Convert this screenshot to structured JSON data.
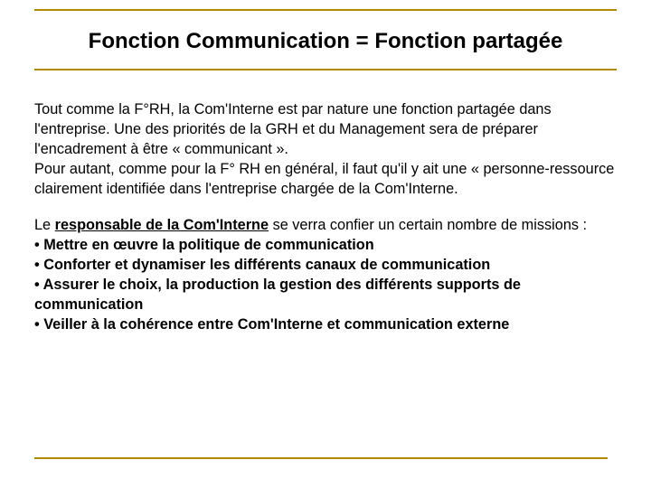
{
  "colors": {
    "accent": "#b28a00",
    "text": "#000000",
    "background": "#ffffff"
  },
  "title": "Fonction Communication = Fonction partagée",
  "para1": "Tout comme la F°RH, la Com'Interne est par nature une fonction partagée dans l'entreprise. Une des priorités de la GRH et du Management sera de préparer l'encadrement à être « communicant ».",
  "para1b": "Pour autant, comme pour la F° RH en général, il faut qu'il y ait une « personne-ressource clairement identifiée dans l'entreprise chargée de la Com'Interne.",
  "para2_lead_a": "Le ",
  "para2_lead_bold": "responsable de la Com'Interne",
  "para2_lead_b": " se verra confier un certain nombre de missions :",
  "bullets": [
    "• Mettre en œuvre la politique de communication",
    "• Conforter et dynamiser les différents canaux de communication",
    "• Assurer le choix, la production la gestion des différents supports de communication",
    "• Veiller à la cohérence entre Com'Interne et communication externe"
  ]
}
